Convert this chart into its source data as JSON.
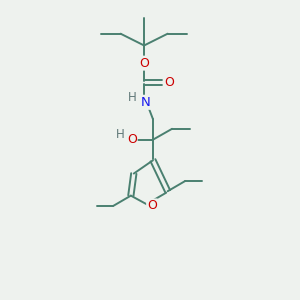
{
  "bg_color": "#eef2ee",
  "bond_color": "#4a8070",
  "atom_colors": {
    "O": "#cc0000",
    "N": "#1a1aee",
    "H": "#607878"
  },
  "figsize": [
    3.0,
    3.0
  ],
  "dpi": 100
}
